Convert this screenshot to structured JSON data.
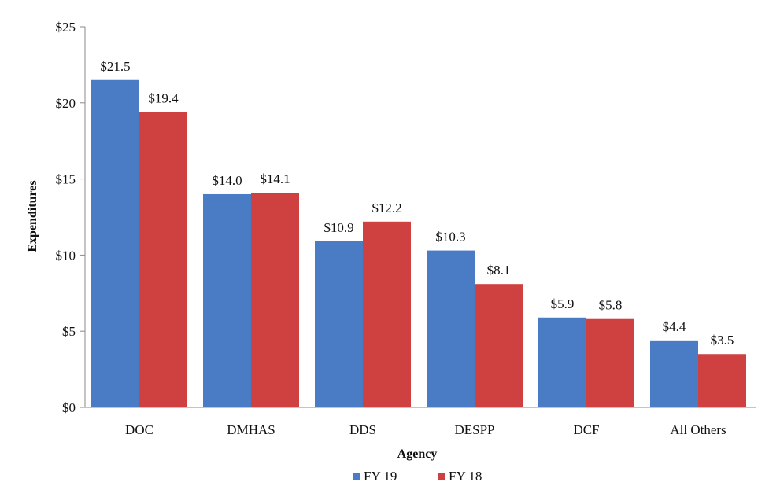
{
  "chart_data": {
    "type": "bar",
    "categories": [
      "DOC",
      "DMHAS",
      "DDS",
      "DESPP",
      "DCF",
      "All Others"
    ],
    "series": [
      {
        "name": "FY 19",
        "values": [
          21.5,
          14.0,
          10.9,
          10.3,
          5.9,
          4.4
        ],
        "labels": [
          "$21.5",
          "$14.0",
          "$10.9",
          "$10.3",
          "$5.9",
          "$4.4"
        ],
        "color": "#4a7cc6"
      },
      {
        "name": "FY 18",
        "values": [
          19.4,
          14.1,
          12.2,
          8.1,
          5.8,
          3.5
        ],
        "labels": [
          "$19.4",
          "$14.1",
          "$12.2",
          "$8.1",
          "$5.8",
          "$3.5"
        ],
        "color": "#cf4141"
      }
    ],
    "xlabel": "Agency",
    "ylabel": "Expenditures",
    "ylim": [
      0,
      25
    ],
    "yticks": [
      0,
      5,
      10,
      15,
      20,
      25
    ],
    "ytick_labels": [
      "$0",
      "$5",
      "$10",
      "$15",
      "$20",
      "$25"
    ],
    "grid": false,
    "legend_position": "bottom"
  }
}
